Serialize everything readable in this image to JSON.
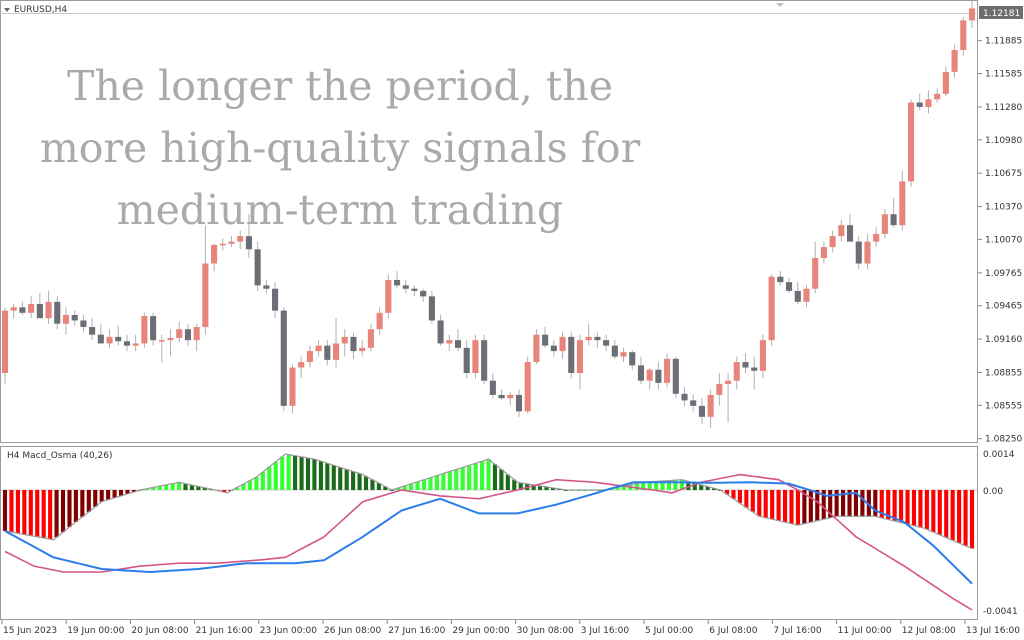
{
  "symbol_tf": "EURUSD,H4",
  "current_price": "1.12181",
  "price_ticks": [
    "1.11885",
    "1.11585",
    "1.11280",
    "1.10980",
    "1.10675",
    "1.10370",
    "1.10070",
    "1.09765",
    "1.09465",
    "1.09160",
    "1.08855",
    "1.08555",
    "1.08250"
  ],
  "time_ticks": [
    "15 Jun 2023",
    "19 Jun 00:00",
    "20 Jun 08:00",
    "21 Jun 16:00",
    "23 Jun 00:00",
    "26 Jun 08:00",
    "27 Jun 16:00",
    "29 Jun 00:00",
    "30 Jun 08:00",
    "3 Jul 16:00",
    "5 Jul 00:00",
    "6 Jul 08:00",
    "7 Jul 16:00",
    "11 Jul 00:00",
    "12 Jul 08:00",
    "13 Jul 16:00"
  ],
  "indicator": {
    "label": "H4  Macd_Osma (40,26)",
    "top_value": "0.0014",
    "zero_value": "0.00",
    "bottom_value": "-0.0041"
  },
  "overlay_text": [
    "The longer the period, the",
    "more high-quality signals for",
    "medium-term trading"
  ],
  "colors": {
    "bull": "#e8847a",
    "bear": "#6b6e74",
    "hist_pos_bright": "#33ff33",
    "hist_pos_dark": "#1a6b1a",
    "hist_neg_bright": "#ff0000",
    "hist_neg_dark": "#800000",
    "macd_line": "#2b7de9",
    "signal_line": "#d4558a",
    "osma_outline": "#999999"
  },
  "chart_data": {
    "type": "candlestick",
    "price_range": [
      1.0822,
      1.1222
    ],
    "candles": [
      [
        1.0885,
        1.0945,
        1.0875,
        1.0942
      ],
      [
        1.0942,
        1.0948,
        1.0935,
        1.0945
      ],
      [
        1.0945,
        1.095,
        1.0938,
        1.094
      ],
      [
        1.094,
        1.0955,
        1.0935,
        1.0948
      ],
      [
        1.0948,
        1.0958,
        1.0938,
        1.0935
      ],
      [
        1.0935,
        1.096,
        1.093,
        1.095
      ],
      [
        1.095,
        1.0955,
        1.0925,
        1.093
      ],
      [
        1.093,
        1.0945,
        1.092,
        1.0938
      ],
      [
        1.0938,
        1.0942,
        1.0928,
        1.0933
      ],
      [
        1.0933,
        1.0938,
        1.0922,
        1.0927
      ],
      [
        1.0927,
        1.0935,
        1.0915,
        1.092
      ],
      [
        1.092,
        1.093,
        1.0912,
        1.0912
      ],
      [
        1.0912,
        1.0925,
        1.0908,
        1.0918
      ],
      [
        1.0918,
        1.0928,
        1.091,
        1.0914
      ],
      [
        1.0914,
        1.092,
        1.0905,
        1.091
      ],
      [
        1.091,
        1.092,
        1.0905,
        1.0912
      ],
      [
        1.0912,
        1.094,
        1.0908,
        1.0937
      ],
      [
        1.0937,
        1.094,
        1.091,
        1.0915
      ],
      [
        1.0915,
        1.092,
        1.0895,
        1.0915
      ],
      [
        1.0915,
        1.0925,
        1.09,
        1.0917
      ],
      [
        1.0917,
        1.0932,
        1.0913,
        1.0925
      ],
      [
        1.0925,
        1.093,
        1.091,
        1.0915
      ],
      [
        1.0915,
        1.093,
        1.0905,
        1.0927
      ],
      [
        1.0927,
        1.102,
        1.092,
        1.0985
      ],
      [
        1.0985,
        1.1003,
        1.0978,
        1.1002
      ],
      [
        1.1002,
        1.1008,
        1.0997,
        1.1003
      ],
      [
        1.1003,
        1.101,
        1.1,
        1.1005
      ],
      [
        1.1005,
        1.1015,
        1.0998,
        1.101
      ],
      [
        1.101,
        1.103,
        1.099,
        1.0998
      ],
      [
        1.0998,
        1.1005,
        1.096,
        1.0965
      ],
      [
        1.0965,
        1.097,
        1.0958,
        1.0962
      ],
      [
        1.0962,
        1.0968,
        1.0935,
        1.0942
      ],
      [
        1.0942,
        1.0945,
        1.085,
        1.0855
      ],
      [
        1.0855,
        1.0893,
        1.0848,
        1.089
      ],
      [
        1.089,
        1.09,
        1.088,
        1.0895
      ],
      [
        1.0895,
        1.091,
        1.089,
        1.0905
      ],
      [
        1.0905,
        1.0915,
        1.09,
        1.091
      ],
      [
        1.091,
        1.0915,
        1.0892,
        1.0897
      ],
      [
        1.0897,
        1.0935,
        1.089,
        1.0912
      ],
      [
        1.0912,
        1.0925,
        1.09,
        1.0918
      ],
      [
        1.0918,
        1.0922,
        1.0898,
        1.0905
      ],
      [
        1.0905,
        1.0915,
        1.09,
        1.0908
      ],
      [
        1.0908,
        1.093,
        1.0905,
        1.0925
      ],
      [
        1.0925,
        1.0945,
        1.092,
        1.094
      ],
      [
        1.094,
        1.0975,
        1.0935,
        1.097
      ],
      [
        1.097,
        1.0978,
        1.0962,
        1.0965
      ],
      [
        1.0965,
        1.097,
        1.0958,
        1.0962
      ],
      [
        1.0962,
        1.0965,
        1.0955,
        1.096
      ],
      [
        1.096,
        1.0962,
        1.095,
        1.0955
      ],
      [
        1.0955,
        1.096,
        1.093,
        1.0933
      ],
      [
        1.0933,
        1.0938,
        1.091,
        1.0912
      ],
      [
        1.0912,
        1.092,
        1.0905,
        1.0915
      ],
      [
        1.0915,
        1.0925,
        1.0905,
        1.0908
      ],
      [
        1.0908,
        1.0915,
        1.088,
        1.0885
      ],
      [
        1.0885,
        1.092,
        1.088,
        1.0915
      ],
      [
        1.0915,
        1.092,
        1.0875,
        1.0878
      ],
      [
        1.0878,
        1.0885,
        1.0862,
        1.0865
      ],
      [
        1.0865,
        1.087,
        1.086,
        1.0862
      ],
      [
        1.0862,
        1.0868,
        1.0855,
        1.0865
      ],
      [
        1.0865,
        1.087,
        1.0845,
        1.085
      ],
      [
        1.085,
        1.09,
        1.0848,
        1.0895
      ],
      [
        1.0895,
        1.0925,
        1.0893,
        1.092
      ],
      [
        1.092,
        1.0927,
        1.0908,
        1.091
      ],
      [
        1.091,
        1.0915,
        1.09,
        1.0905
      ],
      [
        1.0905,
        1.0923,
        1.0898,
        1.0918
      ],
      [
        1.0918,
        1.0922,
        1.088,
        1.0885
      ],
      [
        1.0885,
        1.092,
        1.087,
        1.0915
      ],
      [
        1.0915,
        1.093,
        1.091,
        1.0918
      ],
      [
        1.0918,
        1.0922,
        1.0908,
        1.0915
      ],
      [
        1.0915,
        1.092,
        1.0905,
        1.091
      ],
      [
        1.091,
        1.0915,
        1.0898,
        1.09
      ],
      [
        1.09,
        1.0908,
        1.0895,
        1.0904
      ],
      [
        1.0904,
        1.0906,
        1.0888,
        1.0892
      ],
      [
        1.0892,
        1.09,
        1.0875,
        1.0878
      ],
      [
        1.0878,
        1.089,
        1.087,
        1.0888
      ],
      [
        1.0888,
        1.0895,
        1.087,
        1.0876
      ],
      [
        1.0876,
        1.0903,
        1.0872,
        1.0898
      ],
      [
        1.0898,
        1.09,
        1.0862,
        1.0866
      ],
      [
        1.0866,
        1.0872,
        1.0855,
        1.086
      ],
      [
        1.086,
        1.0865,
        1.085,
        1.0855
      ],
      [
        1.0855,
        1.0862,
        1.0838,
        1.0845
      ],
      [
        1.0845,
        1.087,
        1.0835,
        1.0865
      ],
      [
        1.0865,
        1.0885,
        1.0855,
        1.0875
      ],
      [
        1.0875,
        1.0885,
        1.084,
        1.0878
      ],
      [
        1.0878,
        1.09,
        1.087,
        1.0895
      ],
      [
        1.0895,
        1.0903,
        1.0885,
        1.089
      ],
      [
        1.089,
        1.09,
        1.087,
        1.0887
      ],
      [
        1.0887,
        1.092,
        1.088,
        1.0915
      ],
      [
        1.0915,
        1.0975,
        1.091,
        1.0973
      ],
      [
        1.0973,
        1.0978,
        1.0965,
        1.0968
      ],
      [
        1.0968,
        1.0972,
        1.0958,
        1.096
      ],
      [
        1.096,
        1.0968,
        1.0948,
        1.095
      ],
      [
        1.095,
        1.0965,
        1.0945,
        1.0962
      ],
      [
        1.0962,
        1.1005,
        1.0958,
        1.099
      ],
      [
        1.099,
        1.1005,
        1.0985,
        1.1
      ],
      [
        1.1,
        1.1015,
        1.0995,
        1.101
      ],
      [
        1.101,
        1.1025,
        1.1005,
        1.102
      ],
      [
        1.102,
        1.103,
        1.1005,
        1.1005
      ],
      [
        1.1005,
        1.101,
        1.098,
        1.0985
      ],
      [
        1.0985,
        1.1012,
        1.098,
        1.1005
      ],
      [
        1.1005,
        1.1018,
        1.1,
        1.1012
      ],
      [
        1.1012,
        1.1035,
        1.1008,
        1.103
      ],
      [
        1.103,
        1.1045,
        1.1018,
        1.102
      ],
      [
        1.102,
        1.107,
        1.1015,
        1.106
      ],
      [
        1.106,
        1.1135,
        1.1055,
        1.1132
      ],
      [
        1.1132,
        1.114,
        1.1125,
        1.1128
      ],
      [
        1.1128,
        1.1143,
        1.1122,
        1.1135
      ],
      [
        1.1135,
        1.1145,
        1.1132,
        1.114
      ],
      [
        1.114,
        1.1165,
        1.1138,
        1.116
      ],
      [
        1.116,
        1.1185,
        1.1155,
        1.118
      ],
      [
        1.118,
        1.121,
        1.1175,
        1.1207
      ],
      [
        1.1207,
        1.1225,
        1.12,
        1.1218
      ]
    ],
    "macd_line": [
      [
        0,
        -0.0014
      ],
      [
        0.05,
        -0.0023
      ],
      [
        0.1,
        -0.0027
      ],
      [
        0.15,
        -0.0028
      ],
      [
        0.2,
        -0.0027
      ],
      [
        0.25,
        -0.0025
      ],
      [
        0.3,
        -0.0025
      ],
      [
        0.33,
        -0.0024
      ],
      [
        0.37,
        -0.0016
      ],
      [
        0.41,
        -0.0007
      ],
      [
        0.45,
        -0.0003
      ],
      [
        0.49,
        -0.0008
      ],
      [
        0.53,
        -0.0008
      ],
      [
        0.57,
        -0.0005
      ],
      [
        0.61,
        -0.00012
      ],
      [
        0.65,
        0.0003
      ],
      [
        0.69,
        0.0003
      ],
      [
        0.73,
        0.00028
      ],
      [
        0.77,
        0.0003
      ],
      [
        0.81,
        0.00025
      ],
      [
        0.85,
        -0.0002
      ],
      [
        0.88,
        -0.0001
      ],
      [
        0.9,
        -0.0007
      ],
      [
        0.93,
        -0.0011
      ],
      [
        0.96,
        -0.0019
      ],
      [
        1.0,
        -0.0032
      ]
    ],
    "signal_line": [
      [
        0,
        -0.0021
      ],
      [
        0.03,
        -0.0026
      ],
      [
        0.06,
        -0.0028
      ],
      [
        0.1,
        -0.0028
      ],
      [
        0.14,
        -0.0026
      ],
      [
        0.18,
        -0.0025
      ],
      [
        0.22,
        -0.0025
      ],
      [
        0.26,
        -0.0024
      ],
      [
        0.29,
        -0.0023
      ],
      [
        0.33,
        -0.0016
      ],
      [
        0.37,
        -0.0004
      ],
      [
        0.41,
        0.0
      ],
      [
        0.45,
        -0.0002
      ],
      [
        0.49,
        -0.0003
      ],
      [
        0.53,
        0.0
      ],
      [
        0.57,
        0.0004
      ],
      [
        0.61,
        0.0003
      ],
      [
        0.65,
        0.0001
      ],
      [
        0.69,
        -0.0001
      ],
      [
        0.72,
        0.0003
      ],
      [
        0.76,
        0.0006
      ],
      [
        0.8,
        0.0004
      ],
      [
        0.84,
        -0.0004
      ],
      [
        0.88,
        -0.0016
      ],
      [
        0.93,
        -0.0026
      ],
      [
        0.98,
        -0.0037
      ],
      [
        1.0,
        -0.0041
      ]
    ],
    "osma_env": [
      [
        0,
        -0.0014
      ],
      [
        0.05,
        -0.0017
      ],
      [
        0.1,
        -0.0004
      ],
      [
        0.14,
        0.0
      ],
      [
        0.18,
        0.0003
      ],
      [
        0.23,
        -0.0001
      ],
      [
        0.26,
        0.0005
      ],
      [
        0.29,
        0.0014
      ],
      [
        0.32,
        0.0012
      ],
      [
        0.37,
        0.0006
      ],
      [
        0.4,
        0.0
      ],
      [
        0.45,
        0.0006
      ],
      [
        0.5,
        0.0012
      ],
      [
        0.53,
        0.0003
      ],
      [
        0.58,
        0.0
      ],
      [
        0.62,
        0.0
      ],
      [
        0.66,
        0.0003
      ],
      [
        0.7,
        0.0004
      ],
      [
        0.74,
        0.0
      ],
      [
        0.78,
        -0.0009
      ],
      [
        0.82,
        -0.0012
      ],
      [
        0.86,
        -0.0009
      ],
      [
        0.9,
        -0.0009
      ],
      [
        0.95,
        -0.0013
      ],
      [
        1.0,
        -0.002
      ]
    ]
  }
}
